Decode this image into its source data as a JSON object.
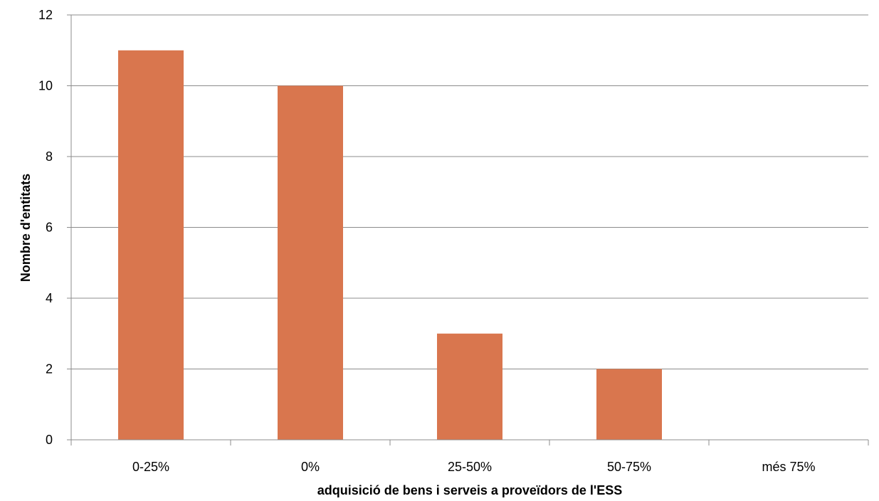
{
  "chart_data": {
    "type": "bar",
    "title": "",
    "xlabel": "adquisició de bens i serveis a proveïdors de l'ESS",
    "ylabel": "Nombre d'entitats",
    "categories": [
      "0-25%",
      "0%",
      "25-50%",
      "50-75%",
      "més 75%"
    ],
    "values": [
      11,
      10,
      3,
      2,
      0
    ],
    "ylim": [
      0,
      12
    ],
    "yticks": [
      "0",
      "2",
      "4",
      "6",
      "8",
      "10",
      "12"
    ],
    "grid": true,
    "legend": "none",
    "bar_color": "#D9764E"
  }
}
